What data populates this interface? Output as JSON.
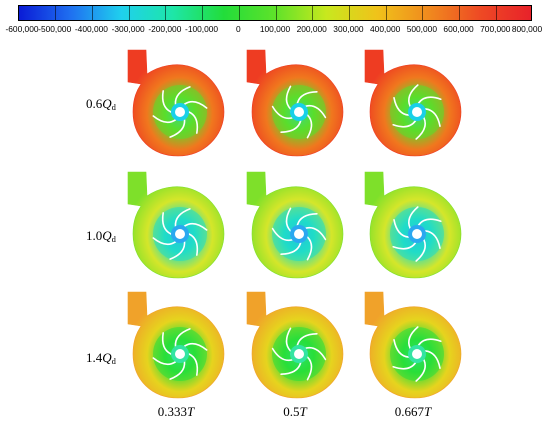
{
  "colorbar": {
    "ticks": [
      "-600,000",
      "-500,000",
      "-400,000",
      "-300,000",
      "-200,000",
      "-100,000",
      "0",
      "100,000",
      "200,000",
      "300,000",
      "400,000",
      "500,000",
      "600,000",
      "700,000",
      "800,000"
    ],
    "colors": [
      "#0a1bd6",
      "#1f6ff0",
      "#1fd0ee",
      "#1ee6a8",
      "#22dd3a",
      "#5ee22a",
      "#c8e81e",
      "#f0c21a",
      "#f08a1e",
      "#ee4a24",
      "#e8222a"
    ]
  },
  "rows": [
    {
      "coef": "0.6",
      "sym": "Q",
      "sub": "d",
      "outer": "#ee3c22",
      "mid": "#f0781e",
      "inner": "#59de2c",
      "hub": "#19d0e8"
    },
    {
      "coef": "1.0",
      "sym": "Q",
      "sub": "d",
      "outer": "#7ee02a",
      "mid": "#d5e62a",
      "inner": "#1fdcc8",
      "hub": "#2aa8f0"
    },
    {
      "coef": "1.4",
      "sym": "Q",
      "sub": "d",
      "outer": "#f0a22a",
      "mid": "#e6d41e",
      "inner": "#28df3a",
      "hub": "#34e4a2"
    }
  ],
  "columns": [
    {
      "value": "0.333",
      "sym": "T"
    },
    {
      "value": "0.5",
      "sym": "T"
    },
    {
      "value": "0.667",
      "sym": "T"
    }
  ]
}
